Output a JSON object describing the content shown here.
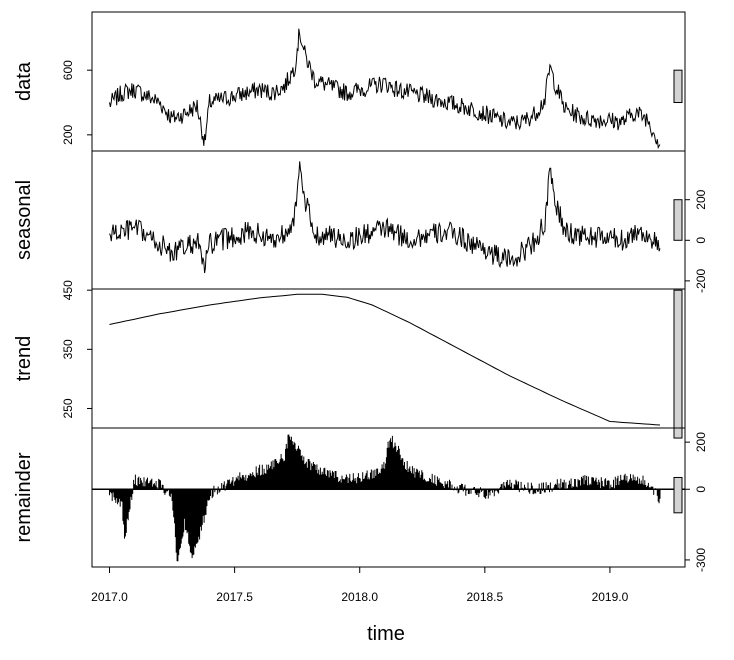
{
  "chart_data": {
    "type": "line",
    "title": "",
    "xlabel": "time",
    "xlim": [
      2016.93,
      2019.3
    ],
    "x_ticks": [
      2017.0,
      2017.5,
      2018.0,
      2018.5,
      2019.0
    ],
    "x_tick_labels": [
      "2017.0",
      "2017.5",
      "2018.0",
      "2018.5",
      "2019.0"
    ],
    "grid": false,
    "panels": [
      {
        "name": "data",
        "ylabel": "data",
        "ylim": [
          100,
          960
        ],
        "y_ticks": [
          200,
          600
        ],
        "y_tick_labels": [
          "200",
          "600"
        ],
        "tick_side": "left",
        "scale_bar": [
          400,
          600
        ],
        "x": [
          2017.0,
          2017.05,
          2017.1,
          2017.15,
          2017.2,
          2017.25,
          2017.3,
          2017.35,
          2017.38,
          2017.4,
          2017.45,
          2017.5,
          2017.55,
          2017.6,
          2017.65,
          2017.7,
          2017.74,
          2017.76,
          2017.78,
          2017.82,
          2017.88,
          2017.95,
          2018.0,
          2018.05,
          2018.1,
          2018.15,
          2018.2,
          2018.25,
          2018.3,
          2018.35,
          2018.4,
          2018.45,
          2018.5,
          2018.55,
          2018.6,
          2018.65,
          2018.7,
          2018.74,
          2018.76,
          2018.78,
          2018.82,
          2018.9,
          2019.0,
          2019.05,
          2019.1,
          2019.15,
          2019.2
        ],
        "y": [
          390,
          460,
          480,
          440,
          400,
          300,
          330,
          380,
          150,
          400,
          420,
          440,
          460,
          480,
          460,
          500,
          620,
          840,
          700,
          540,
          500,
          460,
          480,
          500,
          520,
          480,
          460,
          440,
          420,
          400,
          380,
          360,
          330,
          300,
          270,
          280,
          330,
          420,
          620,
          520,
          360,
          300,
          290,
          280,
          340,
          300,
          140
        ]
      },
      {
        "name": "seasonal",
        "ylabel": "seasonal",
        "ylim": [
          -240,
          440
        ],
        "y_ticks": [
          -200,
          0,
          200
        ],
        "y_tick_labels": [
          "-200",
          "0",
          "200"
        ],
        "tick_side": "right",
        "scale_bar": [
          0,
          200
        ],
        "x": [
          2017.0,
          2017.05,
          2017.1,
          2017.15,
          2017.2,
          2017.25,
          2017.3,
          2017.35,
          2017.38,
          2017.4,
          2017.45,
          2017.5,
          2017.55,
          2017.6,
          2017.65,
          2017.7,
          2017.74,
          2017.76,
          2017.78,
          2017.82,
          2017.88,
          2017.95,
          2018.0,
          2018.05,
          2018.1,
          2018.15,
          2018.2,
          2018.25,
          2018.3,
          2018.35,
          2018.4,
          2018.45,
          2018.5,
          2018.55,
          2018.6,
          2018.65,
          2018.7,
          2018.74,
          2018.76,
          2018.78,
          2018.82,
          2018.9,
          2019.0,
          2019.05,
          2019.1,
          2019.15,
          2019.2
        ],
        "y": [
          30,
          40,
          60,
          20,
          -20,
          -60,
          -40,
          0,
          -140,
          -20,
          0,
          20,
          40,
          30,
          0,
          40,
          120,
          340,
          200,
          30,
          20,
          0,
          20,
          40,
          60,
          30,
          0,
          20,
          30,
          40,
          20,
          -20,
          -40,
          -80,
          -100,
          -60,
          0,
          80,
          330,
          200,
          40,
          20,
          10,
          0,
          40,
          30,
          -40
        ]
      },
      {
        "name": "trend",
        "ylabel": "trend",
        "ylim": [
          217,
          452
        ],
        "y_ticks": [
          250,
          350,
          450
        ],
        "y_tick_labels": [
          "250",
          "350",
          "450"
        ],
        "tick_side": "left",
        "scale_bar": [
          200,
          450
        ],
        "x": [
          2017.0,
          2017.2,
          2017.4,
          2017.6,
          2017.75,
          2017.85,
          2017.95,
          2018.05,
          2018.2,
          2018.4,
          2018.6,
          2018.8,
          2019.0,
          2019.2
        ],
        "y": [
          392,
          410,
          425,
          437,
          443,
          443,
          438,
          425,
          395,
          350,
          305,
          265,
          228,
          222
        ]
      },
      {
        "name": "remainder",
        "ylabel": "remainder",
        "ylim": [
          -330,
          260
        ],
        "y_ticks": [
          -300,
          0,
          200
        ],
        "y_tick_labels": [
          "-300",
          "0",
          "200"
        ],
        "tick_side": "right",
        "scale_bar": [
          -100,
          50
        ],
        "zero_line": true,
        "x": [
          2017.0,
          2017.05,
          2017.06,
          2017.1,
          2017.2,
          2017.25,
          2017.27,
          2017.3,
          2017.33,
          2017.36,
          2017.4,
          2017.5,
          2017.6,
          2017.65,
          2017.7,
          2017.72,
          2017.78,
          2017.85,
          2017.95,
          2018.05,
          2018.1,
          2018.12,
          2018.2,
          2018.3,
          2018.4,
          2018.5,
          2018.6,
          2018.7,
          2018.8,
          2018.9,
          2019.0,
          2019.05,
          2019.1,
          2019.15,
          2019.2
        ],
        "y": [
          -20,
          -60,
          -220,
          40,
          20,
          -30,
          -300,
          -150,
          -270,
          -200,
          -20,
          40,
          80,
          100,
          140,
          240,
          120,
          80,
          40,
          60,
          100,
          220,
          80,
          40,
          0,
          -20,
          20,
          0,
          20,
          40,
          20,
          40,
          60,
          20,
          -40
        ]
      }
    ]
  }
}
